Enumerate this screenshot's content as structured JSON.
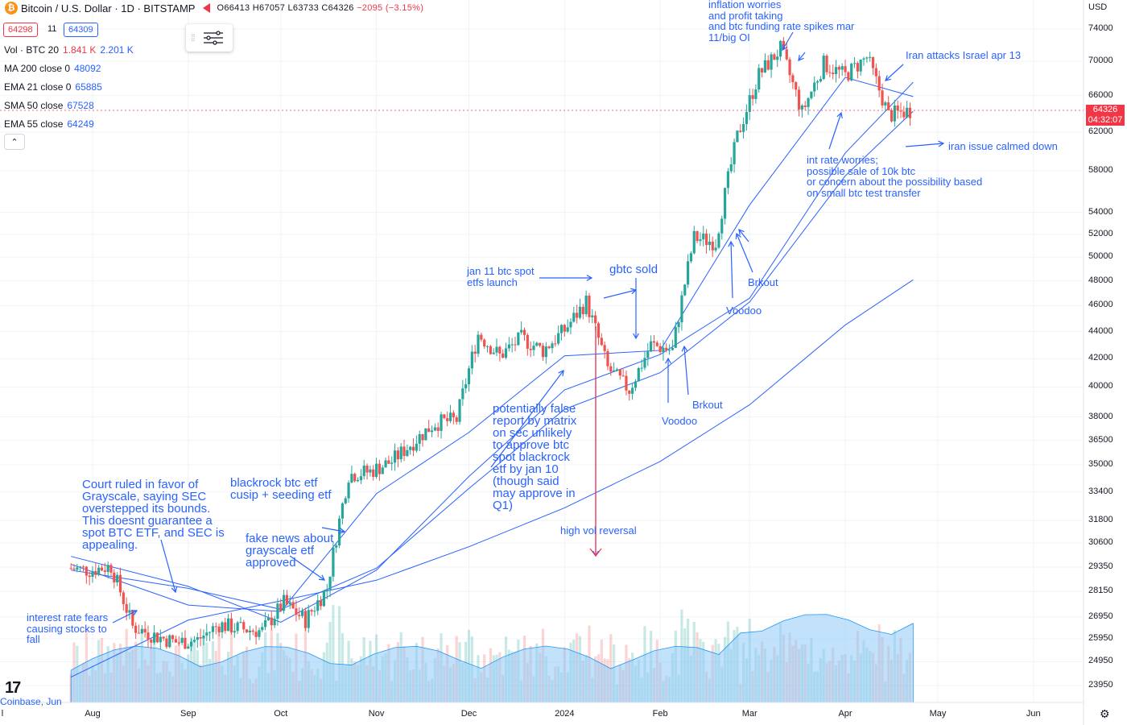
{
  "header": {
    "symbol": "Bitcoin / U.S. Dollar · 1D · BITSTAMP",
    "open": "O66413",
    "high": "H67057",
    "low": "L63733",
    "close": "C64326",
    "change": "−2095 (−3.15%)",
    "bid": "64298",
    "spread": "11",
    "ask": "64309",
    "currency": "USD"
  },
  "indicators": [
    {
      "label": "Vol · BTC 20",
      "v1": "1.841 K",
      "v2": "2.201 K",
      "c1": "#f23645",
      "c2": "#2962ff"
    },
    {
      "label": "MA 200 close 0",
      "v1": "48092",
      "c1": "#2962ff"
    },
    {
      "label": "EMA 21 close 0",
      "v1": "65885",
      "c1": "#2962ff"
    },
    {
      "label": "SMA 50 close",
      "v1": "67528",
      "c1": "#2962ff"
    },
    {
      "label": "EMA 55 close",
      "v1": "64249",
      "c1": "#2962ff"
    }
  ],
  "price_axis": {
    "ticks": [
      "74000",
      "70000",
      "66000",
      "62000",
      "58000",
      "54000",
      "52000",
      "50000",
      "48000",
      "46000",
      "44000",
      "42000",
      "40000",
      "38000",
      "36500",
      "35000",
      "33400",
      "31800",
      "30600",
      "29350",
      "28150",
      "26950",
      "25950",
      "24950",
      "23950"
    ],
    "current_price": "64326",
    "countdown": "04:32:07"
  },
  "time_axis": {
    "ticks": [
      "l",
      "Aug",
      "Sep",
      "Oct",
      "Nov",
      "Dec",
      "2024",
      "Feb",
      "Mar",
      "Apr",
      "May",
      "Jun"
    ]
  },
  "annotations": [
    "inflation worries\nand profit taking\nand btc funding rate spikes mar\n11/big OI",
    "Iran attacks Israel apr 13",
    "iran issue calmed down",
    "int rate worries;\npossible sale of 10k btc\nor concern about the possibility based\non small btc test transfer",
    "Brkout",
    "Voodoo",
    "jan 11 btc spot\netfs launch",
    "gbtc sold",
    "Brkout",
    "Voodoo",
    "potentially false\nreport by matrix\non sec unlikely\nto approve btc\nspot blackrock\netf by jan 10\n(though said\nmay approve in\nQ1)",
    "high vol reversal",
    "Court ruled in favor of\nGrayscale, saying SEC\noverstepped its bounds.\nThis doesnt guarantee a\nspot BTC ETF, and SEC is\nappealing.",
    "blackrock btc etf\ncusip + seeding etf",
    "fake news about\ngrayscale etf\napproved",
    "interest rate fears\ncausing stocks to\nfall"
  ],
  "branding": {
    "logo": "17",
    "source": "Coinbase, Jun"
  },
  "colors": {
    "up": "#26a69a",
    "down": "#ef5350",
    "ma": "#2962ff",
    "volume": "#90caf9",
    "annotation": "#2962ff"
  },
  "chart_data": {
    "type": "candlestick",
    "title": "Bitcoin / U.S. Dollar · 1D · BITSTAMP",
    "y_scale": "log",
    "ylim": [
      23500,
      76000
    ],
    "x_range": [
      "2023-07-25",
      "2024-06-15"
    ],
    "x": [
      "2023-07-25",
      "2023-08-01",
      "2023-08-08",
      "2023-08-15",
      "2023-08-22",
      "2023-08-29",
      "2023-09-05",
      "2023-09-12",
      "2023-09-19",
      "2023-09-26",
      "2023-10-03",
      "2023-10-10",
      "2023-10-17",
      "2023-10-24",
      "2023-10-31",
      "2023-11-07",
      "2023-11-14",
      "2023-11-21",
      "2023-11-28",
      "2023-12-05",
      "2023-12-12",
      "2023-12-19",
      "2023-12-26",
      "2024-01-02",
      "2024-01-09",
      "2024-01-16",
      "2024-01-23",
      "2024-01-30",
      "2024-02-06",
      "2024-02-13",
      "2024-02-20",
      "2024-02-27",
      "2024-03-05",
      "2024-03-12",
      "2024-03-19",
      "2024-03-26",
      "2024-04-02",
      "2024-04-09",
      "2024-04-16",
      "2024-04-23"
    ],
    "series": [
      {
        "name": "BTCUSD",
        "close": [
          29300,
          29200,
          29400,
          26500,
          26100,
          25800,
          25900,
          26600,
          26400,
          26300,
          27600,
          26800,
          28300,
          34400,
          34600,
          35200,
          36400,
          37600,
          37800,
          43800,
          42200,
          43500,
          42600,
          44100,
          46300,
          41300,
          39800,
          43000,
          42600,
          51700,
          51300,
          61500,
          68400,
          71500,
          64100,
          69700,
          68300,
          70500,
          63800,
          64326
        ]
      }
    ],
    "moving_averages": [
      {
        "name": "MA 200 close 0",
        "x": [
          "2023-07-25",
          "2023-09-01",
          "2023-10-01",
          "2023-11-01",
          "2023-12-01",
          "2024-01-01",
          "2024-02-01",
          "2024-03-01",
          "2024-04-01",
          "2024-04-23"
        ],
        "values": [
          24300,
          26800,
          27700,
          28700,
          30400,
          32500,
          35200,
          38800,
          44500,
          48092
        ]
      },
      {
        "name": "EMA 21 close 0",
        "x": [
          "2023-07-25",
          "2023-09-01",
          "2023-10-01",
          "2023-11-01",
          "2023-12-01",
          "2024-01-01",
          "2024-02-01",
          "2024-03-01",
          "2024-04-01",
          "2024-04-23"
        ],
        "values": [
          29500,
          27500,
          27200,
          33300,
          37000,
          42200,
          42600,
          54700,
          68100,
          65885
        ]
      },
      {
        "name": "SMA 50 close",
        "x": [
          "2023-07-25",
          "2023-09-01",
          "2023-10-01",
          "2023-11-01",
          "2023-12-01",
          "2024-01-01",
          "2024-02-01",
          "2024-03-01",
          "2024-04-01",
          "2024-04-23"
        ],
        "values": [
          29900,
          28400,
          26700,
          29200,
          34300,
          39800,
          42300,
          46600,
          59800,
          67528
        ]
      },
      {
        "name": "EMA 55 close",
        "x": [
          "2023-07-25",
          "2023-09-01",
          "2023-10-01",
          "2023-11-01",
          "2023-12-01",
          "2024-01-01",
          "2024-02-01",
          "2024-03-01",
          "2024-04-01",
          "2024-04-23"
        ],
        "values": [
          29200,
          28300,
          27300,
          29300,
          33600,
          38500,
          41000,
          46300,
          57500,
          64249
        ]
      }
    ],
    "grid": true
  }
}
